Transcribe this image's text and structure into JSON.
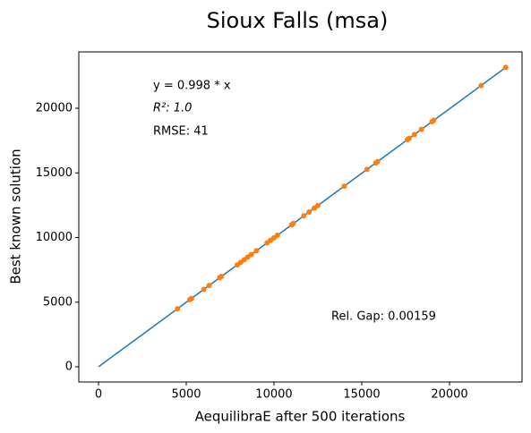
{
  "chart_data": {
    "type": "scatter",
    "title": "Sioux Falls (msa)",
    "x_label": "AequilibraE after 500 iterations",
    "y_label": "Best known solution",
    "annotations": [
      "y = 0.998 * x",
      "R²:  1.0",
      "RMSE: 41",
      "Rel. Gap: 0.00159"
    ],
    "xlim": [
      -1122,
      24133
    ],
    "ylim": [
      -1176,
      24360
    ],
    "xticks": [
      0,
      5000,
      10000,
      15000,
      20000
    ],
    "yticks": [
      0,
      5000,
      10000,
      15000,
      20000
    ],
    "series": [
      {
        "type": "line",
        "color": "#1f77b4",
        "x": [
          0,
          23200
        ],
        "values": [
          0,
          23154
        ]
      },
      {
        "type": "scatter",
        "color": "#ff7f0e",
        "x": [
          4500,
          5200,
          5300,
          6000,
          6300,
          6900,
          7000,
          7900,
          8100,
          8300,
          8500,
          8700,
          9000,
          9600,
          9800,
          10000,
          10200,
          11000,
          11100,
          11700,
          12000,
          12300,
          12500,
          14000,
          15300,
          15800,
          15900,
          17600,
          17700,
          18000,
          18400,
          19000,
          19100,
          21800,
          23200
        ],
        "values": [
          4491,
          5190,
          5289,
          5988,
          6287,
          6886,
          6986,
          7884,
          8084,
          8283,
          8483,
          8683,
          8982,
          9581,
          9780,
          9980,
          10180,
          10978,
          11078,
          11677,
          11976,
          12275,
          12475,
          13972,
          15269,
          15768,
          15868,
          17565,
          17665,
          17964,
          18363,
          18962,
          19062,
          21756,
          23154
        ]
      }
    ]
  }
}
